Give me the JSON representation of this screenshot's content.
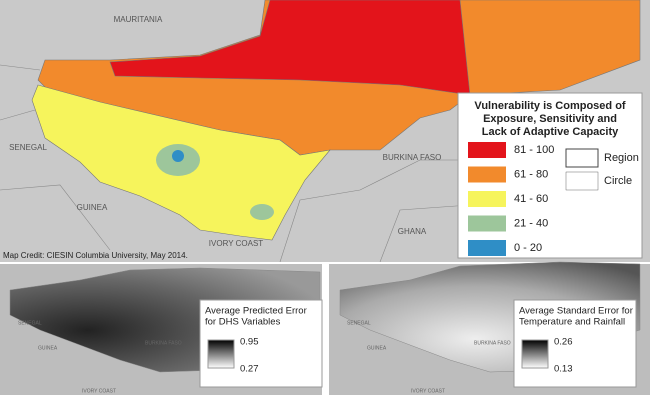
{
  "main_map": {
    "countries": [
      "MAURITANIA",
      "SENEGAL",
      "GUINEA",
      "BURKINA FASO",
      "GHANA",
      "IVORY COAST"
    ],
    "credit": "Map Credit: CIESIN Columbia University, May 2014.",
    "legend": {
      "title": [
        "Vulnerability is Composed of",
        "Exposure, Sensitivity and",
        "Lack of Adaptive Capacity"
      ],
      "classes": [
        {
          "label": "81 - 100",
          "color": "#e3141b"
        },
        {
          "label": "61 - 80",
          "color": "#f28a2c"
        },
        {
          "label": "41 - 60",
          "color": "#f6f45c"
        },
        {
          "label": "21 - 40",
          "color": "#9dc69b"
        },
        {
          "label": "0 - 20",
          "color": "#2f8ec6"
        }
      ],
      "boundaries": [
        "Region",
        "Circle"
      ]
    }
  },
  "error_maps": [
    {
      "title": [
        "Average Predicted Error",
        "for DHS Variables"
      ],
      "max": 0.95,
      "min": 0.27,
      "countries": [
        "SENEGAL",
        "GUINEA",
        "IVORY COAST",
        "BURKINA FASO"
      ]
    },
    {
      "title": [
        "Average Standard Error for",
        "Temperature and Rainfall"
      ],
      "max": 0.26,
      "min": 0.13,
      "countries": [
        "SENEGAL",
        "GUINEA",
        "IVORY COAST",
        "BURKINA FASO"
      ]
    }
  ]
}
